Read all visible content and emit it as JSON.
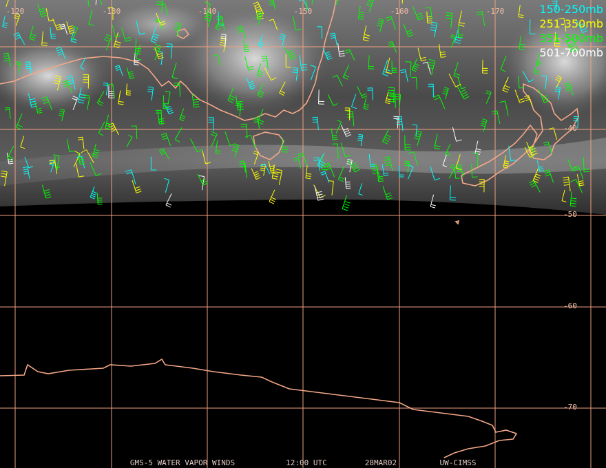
{
  "longitude_labels": [
    "-120",
    "-130",
    "-140",
    "-150",
    "-160",
    "-170"
  ],
  "latitude_labels": [
    "-40",
    "-50",
    "-60",
    "-70"
  ],
  "legend": [
    {
      "label": "150-250mb",
      "color": "#00ffff"
    },
    {
      "label": "251-350mb",
      "color": "#ffff00"
    },
    {
      "label": "351-500mb",
      "color": "#00ff00"
    },
    {
      "label": "501-700mb",
      "color": "#ffffff"
    }
  ],
  "footer": [
    "GMS-5 WATER VAPOR WINDS",
    "12:00 UTC",
    "28MAR02",
    "UW-CIMSS"
  ]
}
